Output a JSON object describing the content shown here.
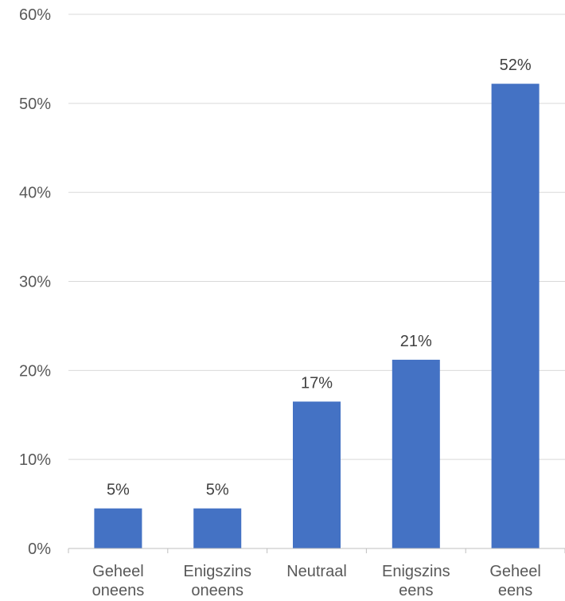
{
  "chart_data": {
    "type": "bar",
    "categories": [
      [
        "Geheel",
        "oneens"
      ],
      [
        "Enigszins",
        "oneens"
      ],
      [
        "Neutraal"
      ],
      [
        "Enigszins",
        "eens"
      ],
      [
        "Geheel",
        "eens"
      ]
    ],
    "values": [
      4.5,
      4.5,
      16.5,
      21.2,
      52.2
    ],
    "data_labels": [
      "5%",
      "5%",
      "17%",
      "21%",
      "52%"
    ],
    "ylim": [
      0,
      60
    ],
    "y_ticks": [
      0,
      10,
      20,
      30,
      40,
      50,
      60
    ],
    "y_tick_labels": [
      "0%",
      "10%",
      "20%",
      "30%",
      "40%",
      "50%",
      "60%"
    ],
    "grid": true,
    "colors": {
      "bar": "#4472c4"
    }
  }
}
